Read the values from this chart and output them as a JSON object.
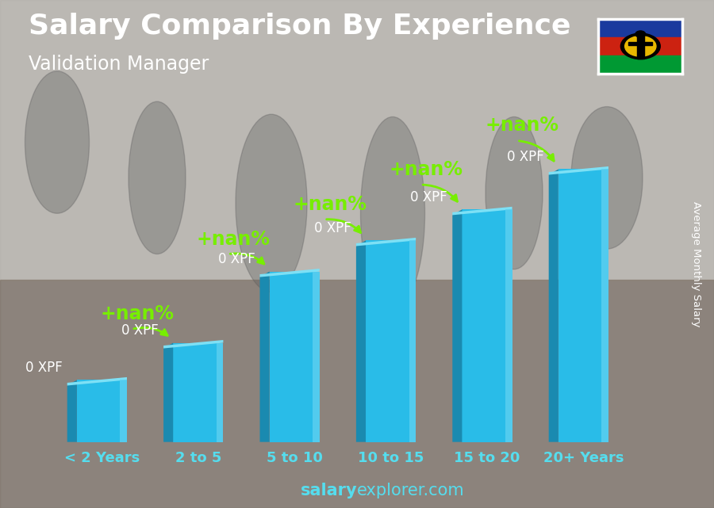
{
  "title": "Salary Comparison By Experience",
  "subtitle": "Validation Manager",
  "categories": [
    "< 2 Years",
    "2 to 5",
    "5 to 10",
    "10 to 15",
    "15 to 20",
    "20+ Years"
  ],
  "values": [
    2.0,
    3.2,
    5.5,
    6.5,
    7.5,
    8.8
  ],
  "bar_label": "0 XPF",
  "pct_label": "+nan%",
  "ylabel": "Average Monthly Salary",
  "footer_bold": "salary",
  "footer_normal": "explorer.com",
  "bar_face_color": "#29bce8",
  "bar_left_color": "#1a8ab0",
  "bar_top_color": "#7de0f5",
  "bar_right_highlight": "#5dd0f0",
  "arrow_color": "#77ee00",
  "text_white": "#ffffff",
  "text_cyan": "#55ddee",
  "bg_color": "#b0b0b0",
  "title_fontsize": 26,
  "subtitle_fontsize": 17,
  "tick_fontsize": 13,
  "footer_fontsize": 15,
  "nan_fontsize": 17,
  "val_fontsize": 12,
  "flag_colors_top": "#1a3a9e",
  "flag_colors_mid": "#cc2211",
  "flag_colors_bot": "#009933"
}
